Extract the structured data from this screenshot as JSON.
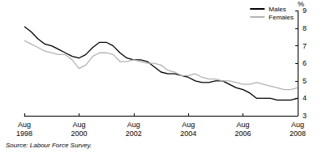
{
  "chart_data": {
    "type": "line",
    "y_label": "%",
    "source": "Source: Labour Force Survey.",
    "categories": [
      "Aug\n1998",
      null,
      null,
      null,
      null,
      null,
      null,
      null,
      "Aug\n2000",
      null,
      null,
      null,
      null,
      null,
      null,
      null,
      "Aug\n2002",
      null,
      null,
      null,
      null,
      null,
      null,
      null,
      "Aug\n2004",
      null,
      null,
      null,
      null,
      null,
      null,
      null,
      "Aug\n2006",
      null,
      null,
      null,
      null,
      null,
      null,
      null,
      "Aug\n2008"
    ],
    "series": [
      {
        "name": "Males",
        "color": "#000000",
        "values": [
          8.1,
          7.8,
          7.4,
          7.1,
          7.0,
          6.8,
          6.6,
          6.4,
          6.3,
          6.5,
          6.9,
          7.2,
          7.2,
          7.0,
          6.6,
          6.3,
          6.2,
          6.2,
          6.1,
          5.8,
          5.5,
          5.4,
          5.4,
          5.3,
          5.2,
          5.0,
          4.9,
          4.9,
          5.0,
          5.0,
          4.8,
          4.6,
          4.5,
          4.3,
          4.0,
          4.0,
          4.0,
          3.9,
          3.9,
          3.9,
          4.0
        ]
      },
      {
        "name": "Females",
        "color": "#b3b3b3",
        "values": [
          7.3,
          7.1,
          6.9,
          6.7,
          6.6,
          6.5,
          6.5,
          6.2,
          5.7,
          5.9,
          6.4,
          6.6,
          6.6,
          6.5,
          6.1,
          6.1,
          6.2,
          6.1,
          6.0,
          6.0,
          5.9,
          5.6,
          5.5,
          5.3,
          5.3,
          5.4,
          5.2,
          5.1,
          5.1,
          5.0,
          5.0,
          4.9,
          4.8,
          4.8,
          4.9,
          4.8,
          4.7,
          4.6,
          4.5,
          4.5,
          4.6
        ]
      }
    ],
    "ylim": [
      3,
      9
    ],
    "yticks": [
      3,
      4,
      5,
      6,
      7,
      8,
      9
    ],
    "grid": false,
    "legend": "top-right"
  }
}
